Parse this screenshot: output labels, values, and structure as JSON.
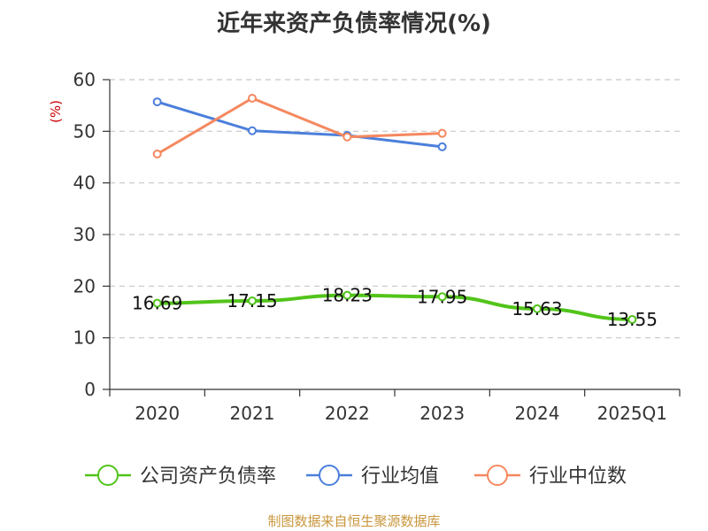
{
  "chart_data": {
    "type": "line",
    "title": "近年来资产负债率情况(%)",
    "ylabel": "(%)",
    "ylabel_color": "#cc0000",
    "categories": [
      "2020",
      "2021",
      "2022",
      "2023",
      "2024",
      "2025Q1"
    ],
    "ylim": [
      0,
      60
    ],
    "yticks": [
      "0",
      "10",
      "20",
      "30",
      "40",
      "50",
      "60"
    ],
    "grid": true,
    "legend_position": "bottom",
    "series": [
      {
        "name": "公司资产负债率",
        "color": "#52c41a",
        "values": [
          16.69,
          17.15,
          18.23,
          17.95,
          15.63,
          13.55
        ],
        "labels": [
          "16.69",
          "17.15",
          "18.23",
          "17.95",
          "15.63",
          "13.55"
        ]
      },
      {
        "name": "行业均值",
        "color": "#4b7fdb",
        "values": [
          55.7,
          50.1,
          49.2,
          47.0,
          null,
          null
        ]
      },
      {
        "name": "行业中位数",
        "color": "#f5885f",
        "values": [
          45.6,
          56.4,
          48.9,
          49.6,
          null,
          null
        ]
      }
    ]
  },
  "source": "制图数据来自恒生聚源数据库"
}
